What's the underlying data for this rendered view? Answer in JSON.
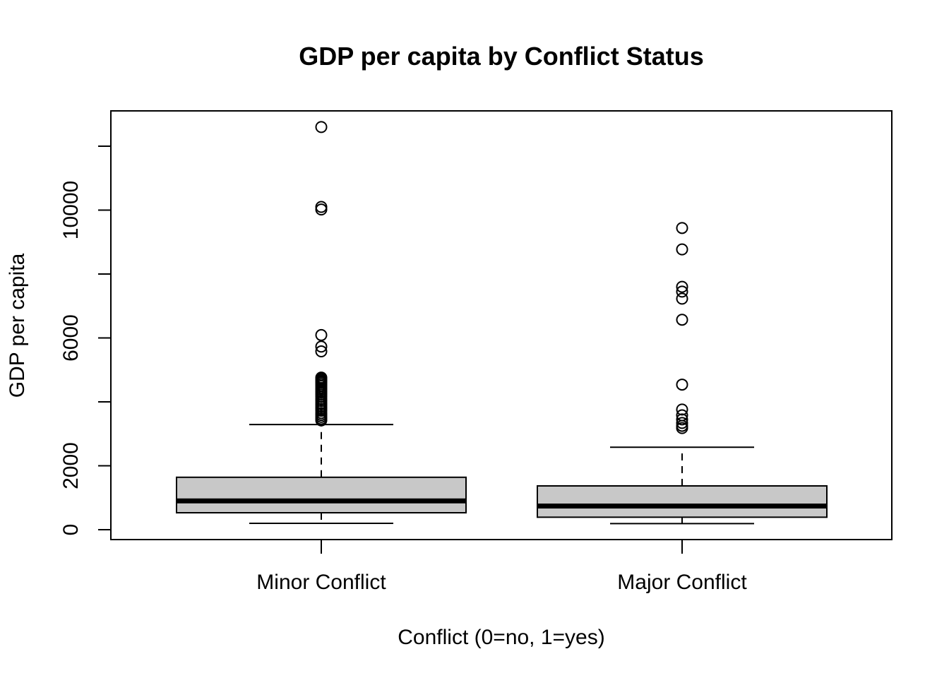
{
  "chart_data": {
    "type": "boxplot",
    "title": "GDP per capita by Conflict Status",
    "xlabel": "Conflict (0=no, 1=yes)",
    "ylabel": "GDP per capita",
    "ylim": [
      -300,
      13150
    ],
    "yticks": [
      0,
      2000,
      4000,
      6000,
      8000,
      10000,
      12000
    ],
    "ytick_labels": [
      "0",
      "2000",
      "",
      "6000",
      "",
      "10000",
      ""
    ],
    "colors": {
      "box_fill": "#c8c8c8",
      "stroke": "#000000"
    },
    "categories": [
      "Minor Conflict",
      "Major Conflict"
    ],
    "boxes": [
      {
        "label": "Minor Conflict",
        "whisker_low": 200,
        "q1": 530,
        "median": 900,
        "q3": 1640,
        "whisker_high": 3290,
        "outliers": [
          12600,
          10100,
          10020,
          6090,
          5730,
          5580,
          4760,
          4720,
          4680,
          4640,
          4600,
          4550,
          4500,
          4440,
          4390,
          4330,
          4280,
          4220,
          4160,
          4090,
          4030,
          3960,
          3900,
          3840,
          3780,
          3720,
          3650,
          3590,
          3530,
          3470,
          3420
        ]
      },
      {
        "label": "Major Conflict",
        "whisker_low": 190,
        "q1": 390,
        "median": 740,
        "q3": 1370,
        "whisker_high": 2580,
        "outliers": [
          9440,
          8770,
          7600,
          7450,
          7230,
          6570,
          4540,
          3760,
          3580,
          3450,
          3340,
          3250,
          3180
        ]
      }
    ]
  }
}
